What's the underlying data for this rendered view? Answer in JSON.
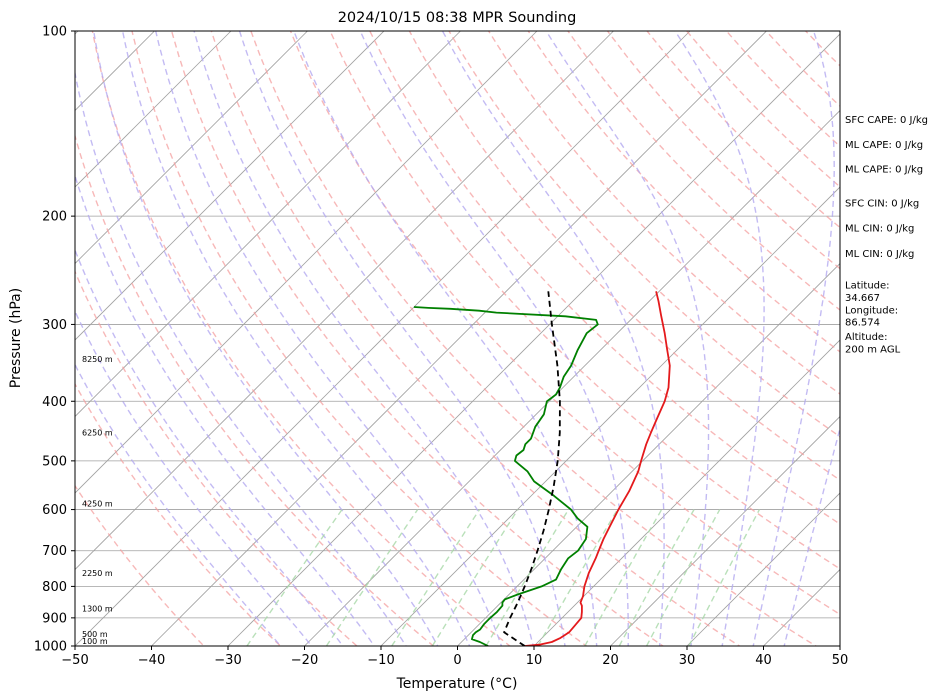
{
  "chart_data": {
    "type": "line",
    "title": "2024/10/15 08:38 MPR Sounding",
    "xlabel": "Temperature (°C)",
    "ylabel": "Pressure (hPa)",
    "xlim": [
      -50,
      50
    ],
    "ylim": [
      1000,
      100
    ],
    "y_scale": "log",
    "x_ticks": [
      "−50",
      "−40",
      "−30",
      "−20",
      "−10",
      "0",
      "10",
      "20",
      "30",
      "40",
      "50"
    ],
    "x_tick_values": [
      -50,
      -40,
      -30,
      -20,
      -10,
      0,
      10,
      20,
      30,
      40,
      50
    ],
    "y_ticks": [
      "100",
      "200",
      "300",
      "400",
      "500",
      "600",
      "700",
      "800",
      "900",
      "1000"
    ],
    "y_tick_values": [
      100,
      200,
      300,
      400,
      500,
      600,
      700,
      800,
      900,
      1000
    ],
    "skew_degrees": 45,
    "grid": true,
    "series": [
      {
        "key": "temperature",
        "color": "#e41a1c",
        "points": [
          [
            1000,
            8.8
          ],
          [
            995,
            10.5
          ],
          [
            985,
            11.8
          ],
          [
            970,
            12.4
          ],
          [
            950,
            12.8
          ],
          [
            930,
            12.7
          ],
          [
            900,
            12.5
          ],
          [
            880,
            11.8
          ],
          [
            860,
            11.0
          ],
          [
            850,
            10.4
          ],
          [
            830,
            9.9
          ],
          [
            800,
            8.8
          ],
          [
            760,
            7.6
          ],
          [
            720,
            6.6
          ],
          [
            700,
            6.0
          ],
          [
            670,
            5.1
          ],
          [
            640,
            4.3
          ],
          [
            600,
            3.2
          ],
          [
            560,
            2.2
          ],
          [
            520,
            0.8
          ],
          [
            500,
            -0.2
          ],
          [
            470,
            -1.7
          ],
          [
            450,
            -2.6
          ],
          [
            430,
            -3.5
          ],
          [
            400,
            -4.9
          ],
          [
            380,
            -6.2
          ],
          [
            350,
            -8.9
          ],
          [
            330,
            -11.3
          ],
          [
            310,
            -13.8
          ],
          [
            290,
            -16.6
          ],
          [
            275,
            -18.8
          ],
          [
            265,
            -20.4
          ]
        ]
      },
      {
        "key": "dewpoint",
        "color": "#008000",
        "points": [
          [
            1000,
            4.0
          ],
          [
            985,
            2.4
          ],
          [
            975,
            1.0
          ],
          [
            960,
            0.6
          ],
          [
            950,
            0.6
          ],
          [
            940,
            0.8
          ],
          [
            920,
            0.6
          ],
          [
            900,
            0.6
          ],
          [
            880,
            0.7
          ],
          [
            860,
            0.6
          ],
          [
            850,
            0.2
          ],
          [
            840,
            0.1
          ],
          [
            825,
            1.1
          ],
          [
            800,
            3.2
          ],
          [
            780,
            4.2
          ],
          [
            750,
            3.5
          ],
          [
            720,
            3.0
          ],
          [
            700,
            3.3
          ],
          [
            670,
            2.8
          ],
          [
            640,
            1.4
          ],
          [
            620,
            -1.0
          ],
          [
            600,
            -3.0
          ],
          [
            570,
            -7.0
          ],
          [
            540,
            -11.5
          ],
          [
            520,
            -13.7
          ],
          [
            500,
            -16.7
          ],
          [
            490,
            -17.2
          ],
          [
            480,
            -17.0
          ],
          [
            470,
            -17.5
          ],
          [
            460,
            -17.5
          ],
          [
            440,
            -18.5
          ],
          [
            420,
            -19.0
          ],
          [
            400,
            -20.3
          ],
          [
            390,
            -20.0
          ],
          [
            380,
            -20.4
          ],
          [
            365,
            -21.3
          ],
          [
            350,
            -21.8
          ],
          [
            330,
            -23.0
          ],
          [
            310,
            -24.0
          ],
          [
            300,
            -23.7
          ],
          [
            295,
            -24.5
          ],
          [
            291,
            -29.0
          ],
          [
            287,
            -38.5
          ],
          [
            285,
            -41.0
          ],
          [
            283,
            -45.0
          ],
          [
            282,
            -48.0
          ],
          [
            281,
            -50.0
          ]
        ]
      },
      {
        "key": "parcel",
        "color": "#000000",
        "dash": "6,4",
        "points": [
          [
            1000,
            8.8
          ],
          [
            950,
            4.3
          ],
          [
            900,
            3.2
          ],
          [
            850,
            2.2
          ],
          [
            800,
            1.0
          ],
          [
            750,
            -0.4
          ],
          [
            700,
            -2.0
          ],
          [
            650,
            -3.8
          ],
          [
            600,
            -5.9
          ],
          [
            550,
            -8.3
          ],
          [
            500,
            -11.1
          ],
          [
            450,
            -14.5
          ],
          [
            400,
            -18.6
          ],
          [
            350,
            -23.6
          ],
          [
            300,
            -29.7
          ],
          [
            265,
            -34.5
          ]
        ]
      }
    ],
    "height_labels": [
      {
        "text": "100 m",
        "p": 1000
      },
      {
        "text": "500 m",
        "p": 975
      },
      {
        "text": "1300 m",
        "p": 885
      },
      {
        "text": "2250 m",
        "p": 775
      },
      {
        "text": "4250 m",
        "p": 598
      },
      {
        "text": "6250 m",
        "p": 458
      },
      {
        "text": "8250 m",
        "p": 348
      }
    ],
    "side_info": [
      {
        "text": "SFC CAPE: 0 J/kg",
        "p": 141
      },
      {
        "text": "ML CAPE: 0 J/kg",
        "p": 155
      },
      {
        "text": "ML CAPE: 0 J/kg",
        "p": 170
      },
      {
        "text": "SFC CIN: 0 J/kg",
        "p": 193
      },
      {
        "text": "ML CIN: 0 J/kg",
        "p": 212
      },
      {
        "text": "ML CIN: 0 J/kg",
        "p": 233
      },
      {
        "text": "Latitude:",
        "p": 262
      },
      {
        "text": "34.667",
        "p": 275
      },
      {
        "text": "Longitude:",
        "p": 288
      },
      {
        "text": "86.574",
        "p": 301
      },
      {
        "text": "Altitude:",
        "p": 318
      },
      {
        "text": "200 m AGL",
        "p": 333
      }
    ],
    "background_line_colors": {
      "isotherms": "#a0a0a0",
      "isobars": "#a0a0a0",
      "dry_adiabats": "#f4a0a0",
      "moist_adiabats": "#b4aaf0",
      "mixing_ratio": "#a8d8a8"
    }
  }
}
